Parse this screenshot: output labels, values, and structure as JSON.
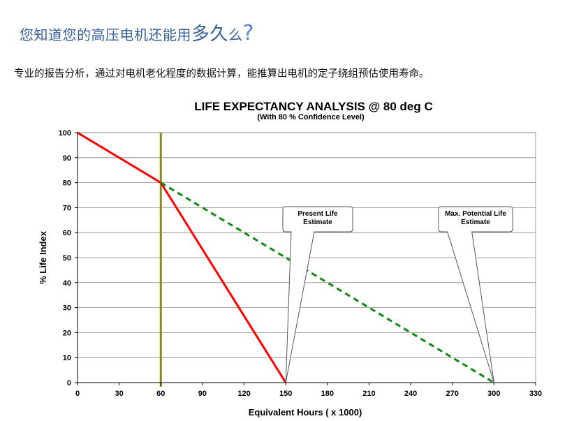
{
  "header": {
    "title_main": "您知道您的高压电机还能用",
    "title_big": "多久",
    "title_tail": "么",
    "title_q": "?",
    "subtitle": "专业的报告分析，通过对电机老化程度的数据计算，能推算出电机的定子绕组预估使用寿命。"
  },
  "chart_data": {
    "type": "line",
    "title": "LIFE EXPECTANCY ANALYSIS @ 80 deg C",
    "subtitle": "(With 80 % Confidence Level)",
    "xlabel": "Equivalent Hours ( x 1000)",
    "ylabel": "% Life Index",
    "xlim": [
      0,
      330
    ],
    "ylim": [
      0,
      100
    ],
    "xticks": [
      "0",
      "30",
      "60",
      "90",
      "120",
      "150",
      "180",
      "210",
      "240",
      "270",
      "300",
      "330"
    ],
    "yticks": [
      "0",
      "10",
      "20",
      "30",
      "40",
      "50",
      "60",
      "70",
      "80",
      "90",
      "100"
    ],
    "grid": "horizontal",
    "series": [
      {
        "name": "",
        "style": "solid",
        "color": "#ff0000",
        "points": [
          [
            0,
            100
          ],
          [
            60,
            80
          ],
          [
            150,
            0
          ]
        ]
      },
      {
        "name": "",
        "style": "dashed",
        "color": "#118811",
        "points": [
          [
            60,
            80
          ],
          [
            300,
            0
          ]
        ]
      }
    ],
    "reference_line": {
      "x": 60,
      "color": "#8b8b1a"
    },
    "annotations": [
      {
        "lines": [
          "Present Life",
          "Estimate"
        ],
        "x": 150,
        "y": 0
      },
      {
        "lines": [
          "Max. Potential Life",
          "Estimate"
        ],
        "x": 300,
        "y": 0
      }
    ]
  }
}
